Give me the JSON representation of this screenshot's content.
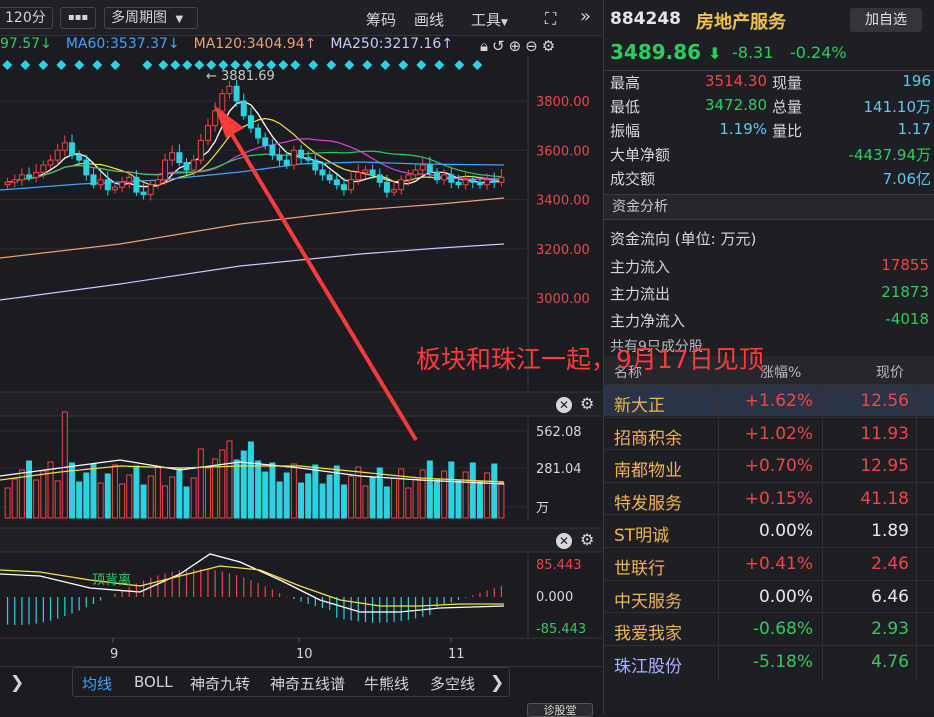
{
  "toolbar": {
    "period": "120分",
    "more": "▪▪▪",
    "multi_period": "多周期图",
    "chip": "筹码",
    "draw": "画线",
    "tools": "工具",
    "expand": "⛶",
    "collapse": "»"
  },
  "ma_legend": [
    {
      "text": "97.57↓",
      "color": "#2ecc5e"
    },
    {
      "text": "MA60:3537.37↓",
      "color": "#3aa6ff"
    },
    {
      "text": "MA120:3404.94↑",
      "color": "#f0a070"
    },
    {
      "text": "MA250:3217.16↑",
      "color": "#c8c8ff"
    }
  ],
  "main_chart": {
    "peak_label": "← 3881.69",
    "y_ticks": [
      "3800.00",
      "3600.00",
      "3400.00",
      "3200.00",
      "3000.00"
    ]
  },
  "volume_chart": {
    "y_ticks": [
      "562.08",
      "281.04",
      "万"
    ]
  },
  "macd_chart": {
    "y_ticks": [
      "85.443",
      "0.000",
      "-85.443"
    ],
    "signal_label": "顶背离"
  },
  "x_axis": [
    "9",
    "10",
    "11"
  ],
  "indicator_tabs": [
    "均线",
    "BOLL",
    "神奇九转",
    "神奇五线谱",
    "牛熊线",
    "多空线"
  ],
  "bottom_button": "诊股堂",
  "stock": {
    "code": "884248",
    "name": "房地产服务",
    "add_label": "加自选",
    "price": "3489.86",
    "arrow": "⬇",
    "change": "-8.31",
    "pct": "-0.24%"
  },
  "quote": {
    "high_l": "最高",
    "high_v": "3514.30",
    "now_vol_l": "现量",
    "now_vol_v": "196",
    "low_l": "最低",
    "low_v": "3472.80",
    "total_vol_l": "总量",
    "total_vol_v": "141.10万",
    "amp_l": "振幅",
    "amp_v": "1.19%",
    "vol_ratio_l": "量比",
    "vol_ratio_v": "1.17",
    "big_net_l": "大单净额",
    "big_net_v": "-4437.94万",
    "turnover_l": "成交额",
    "turnover_v": "7.06亿"
  },
  "fund": {
    "title": "资金分析",
    "flow_title": "资金流向 (单位: 万元)",
    "in_l": "主力流入",
    "in_v": "17855",
    "out_l": "主力流出",
    "out_v": "21873",
    "net_l": "主力净流入",
    "net_v": "-4018"
  },
  "constituents": {
    "caption": "共有9只成分股",
    "headers": [
      "名称",
      "涨幅%",
      "现价"
    ],
    "rows": [
      {
        "name": "新大正",
        "chg": "+1.62%",
        "price": "12.56",
        "cls": "red"
      },
      {
        "name": "招商积余",
        "chg": "+1.02%",
        "price": "11.93",
        "cls": "red"
      },
      {
        "name": "南都物业",
        "chg": "+0.70%",
        "price": "12.95",
        "cls": "red"
      },
      {
        "name": "特发服务",
        "chg": "+0.15%",
        "price": "41.18",
        "cls": "red"
      },
      {
        "name": "ST明诚",
        "chg": "0.00%",
        "price": "1.89",
        "cls": "white"
      },
      {
        "name": "世联行",
        "chg": "+0.41%",
        "price": "2.46",
        "cls": "red"
      },
      {
        "name": "中天服务",
        "chg": "0.00%",
        "price": "6.46",
        "cls": "white"
      },
      {
        "name": "我爱我家",
        "chg": "-0.68%",
        "price": "2.93",
        "cls": "green"
      },
      {
        "name": "珠江股份",
        "chg": "-5.18%",
        "price": "4.76",
        "cls": "green"
      }
    ]
  },
  "annotation": "板块和珠江一起，9月17日见顶"
}
